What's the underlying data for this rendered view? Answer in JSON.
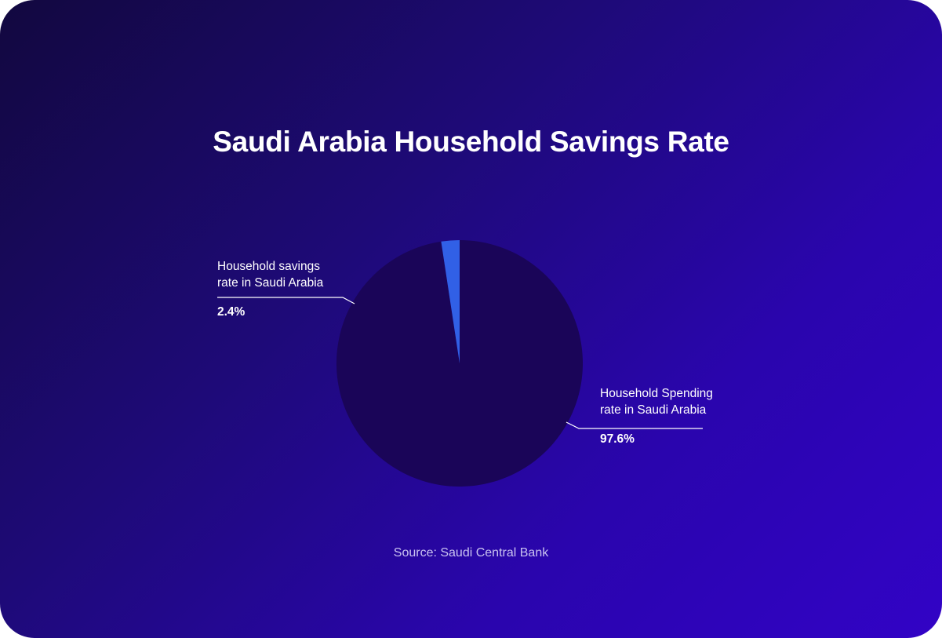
{
  "chart_data": {
    "type": "pie",
    "title": "Saudi Arabia Household Savings Rate",
    "slices": [
      {
        "label_line1": "Household savings",
        "label_line2": "rate in Saudi Arabia",
        "value": 2.4,
        "value_label": "2.4%",
        "color": "#3160e6"
      },
      {
        "label_line1": "Household Spending",
        "label_line2": "rate in Saudi Arabia",
        "value": 97.6,
        "value_label": "97.6%",
        "color": "#1a0558"
      }
    ],
    "source": "Source: Saudi Central Bank"
  },
  "colors": {
    "background_start": "#12083f",
    "background_end": "#3203c6",
    "leader_line": "#ffffff"
  }
}
